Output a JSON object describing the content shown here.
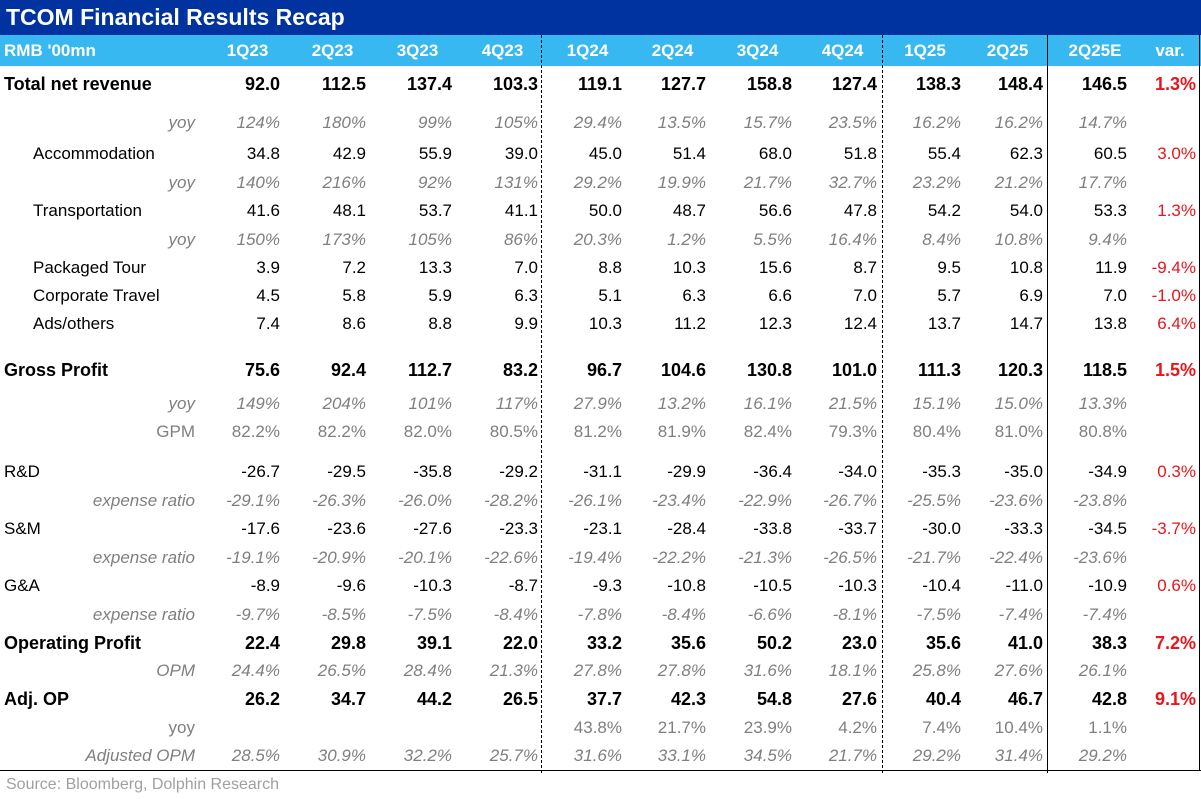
{
  "title": "TCOM Financial Results Recap",
  "header": {
    "unit": "RMB '00mn",
    "columns": [
      "1Q23",
      "2Q23",
      "3Q23",
      "4Q23",
      "1Q24",
      "2Q24",
      "3Q24",
      "4Q24",
      "1Q25",
      "2Q25",
      "2Q25E"
    ],
    "var": "var."
  },
  "rows": [
    {
      "label": "Total net revenue",
      "style": "bold",
      "values": [
        "92.0",
        "112.5",
        "137.4",
        "103.3",
        "119.1",
        "127.7",
        "158.8",
        "127.4",
        "138.3",
        "148.4",
        "146.5"
      ],
      "var": "1.3%"
    },
    {
      "label": "yoy",
      "style": "italic-right",
      "values": [
        "124%",
        "180%",
        "99%",
        "105%",
        "29.4%",
        "13.5%",
        "15.7%",
        "23.5%",
        "16.2%",
        "16.2%",
        "14.7%"
      ],
      "var": ""
    },
    {
      "label": "Accommodation",
      "style": "indent",
      "values": [
        "34.8",
        "42.9",
        "55.9",
        "39.0",
        "45.0",
        "51.4",
        "68.0",
        "51.8",
        "55.4",
        "62.3",
        "60.5"
      ],
      "var": "3.0%"
    },
    {
      "label": "yoy",
      "style": "italic-right",
      "values": [
        "140%",
        "216%",
        "92%",
        "131%",
        "29.2%",
        "19.9%",
        "21.7%",
        "32.7%",
        "23.2%",
        "21.2%",
        "17.7%"
      ],
      "var": ""
    },
    {
      "label": "Transportation",
      "style": "indent",
      "values": [
        "41.6",
        "48.1",
        "53.7",
        "41.1",
        "50.0",
        "48.7",
        "56.6",
        "47.8",
        "54.2",
        "54.0",
        "53.3"
      ],
      "var": "1.3%"
    },
    {
      "label": "yoy",
      "style": "italic-right",
      "values": [
        "150%",
        "173%",
        "105%",
        "86%",
        "20.3%",
        "1.2%",
        "5.5%",
        "16.4%",
        "8.4%",
        "10.8%",
        "9.4%"
      ],
      "var": ""
    },
    {
      "label": "Packaged Tour",
      "style": "indent",
      "values": [
        "3.9",
        "7.2",
        "13.3",
        "7.0",
        "8.8",
        "10.3",
        "15.6",
        "8.7",
        "9.5",
        "10.8",
        "11.9"
      ],
      "var": "-9.4%"
    },
    {
      "label": "Corporate Travel",
      "style": "indent",
      "values": [
        "4.5",
        "5.8",
        "5.9",
        "6.3",
        "5.1",
        "6.3",
        "6.6",
        "7.0",
        "5.7",
        "6.9",
        "7.0"
      ],
      "var": "-1.0%"
    },
    {
      "label": "Ads/others",
      "style": "indent",
      "values": [
        "7.4",
        "8.6",
        "8.8",
        "9.9",
        "10.3",
        "11.2",
        "12.3",
        "12.4",
        "13.7",
        "14.7",
        "13.8"
      ],
      "var": "6.4%"
    },
    {
      "label": "Gross Profit",
      "style": "bold",
      "values": [
        "75.6",
        "92.4",
        "112.7",
        "83.2",
        "96.7",
        "104.6",
        "130.8",
        "101.0",
        "111.3",
        "120.3",
        "118.5"
      ],
      "var": "1.5%"
    },
    {
      "label": "yoy",
      "style": "italic-right",
      "values": [
        "149%",
        "204%",
        "101%",
        "117%",
        "27.9%",
        "13.2%",
        "16.1%",
        "21.5%",
        "15.1%",
        "15.0%",
        "13.3%"
      ],
      "var": ""
    },
    {
      "label": "GPM",
      "style": "grey-right",
      "values": [
        "82.2%",
        "82.2%",
        "82.0%",
        "80.5%",
        "81.2%",
        "81.9%",
        "82.4%",
        "79.3%",
        "80.4%",
        "81.0%",
        "80.8%"
      ],
      "var": ""
    },
    {
      "label": "R&D",
      "style": "plain",
      "values": [
        "-26.7",
        "-29.5",
        "-35.8",
        "-29.2",
        "-31.1",
        "-29.9",
        "-36.4",
        "-34.0",
        "-35.3",
        "-35.0",
        "-34.9"
      ],
      "var": "0.3%"
    },
    {
      "label": "expense ratio",
      "style": "italic-right",
      "values": [
        "-29.1%",
        "-26.3%",
        "-26.0%",
        "-28.2%",
        "-26.1%",
        "-23.4%",
        "-22.9%",
        "-26.7%",
        "-25.5%",
        "-23.6%",
        "-23.8%"
      ],
      "var": ""
    },
    {
      "label": "S&M",
      "style": "plain",
      "values": [
        "-17.6",
        "-23.6",
        "-27.6",
        "-23.3",
        "-23.1",
        "-28.4",
        "-33.8",
        "-33.7",
        "-30.0",
        "-33.3",
        "-34.5"
      ],
      "var": "-3.7%"
    },
    {
      "label": "expense ratio",
      "style": "italic-right",
      "values": [
        "-19.1%",
        "-20.9%",
        "-20.1%",
        "-22.6%",
        "-19.4%",
        "-22.2%",
        "-21.3%",
        "-26.5%",
        "-21.7%",
        "-22.4%",
        "-23.6%"
      ],
      "var": ""
    },
    {
      "label": "G&A",
      "style": "plain",
      "values": [
        "-8.9",
        "-9.6",
        "-10.3",
        "-8.7",
        "-9.3",
        "-10.8",
        "-10.5",
        "-10.3",
        "-10.4",
        "-11.0",
        "-10.9"
      ],
      "var": "0.6%"
    },
    {
      "label": "expense ratio",
      "style": "italic-right",
      "values": [
        "-9.7%",
        "-8.5%",
        "-7.5%",
        "-8.4%",
        "-7.8%",
        "-8.4%",
        "-6.6%",
        "-8.1%",
        "-7.5%",
        "-7.4%",
        "-7.4%"
      ],
      "var": ""
    },
    {
      "label": "Operating Profit",
      "style": "bold",
      "values": [
        "22.4",
        "29.8",
        "39.1",
        "22.0",
        "33.2",
        "35.6",
        "50.2",
        "23.0",
        "35.6",
        "41.0",
        "38.3"
      ],
      "var": "7.2%"
    },
    {
      "label": "OPM",
      "style": "italic-right",
      "values": [
        "24.4%",
        "26.5%",
        "28.4%",
        "21.3%",
        "27.8%",
        "27.8%",
        "31.6%",
        "18.1%",
        "25.8%",
        "27.6%",
        "26.1%"
      ],
      "var": ""
    },
    {
      "label": "Adj. OP",
      "style": "bold",
      "values": [
        "26.2",
        "34.7",
        "44.2",
        "26.5",
        "37.7",
        "42.3",
        "54.8",
        "27.6",
        "40.4",
        "46.7",
        "42.8"
      ],
      "var": "9.1%"
    },
    {
      "label": "yoy",
      "style": "grey-right",
      "values": [
        "",
        "",
        "",
        "",
        "43.8%",
        "21.7%",
        "23.9%",
        "4.2%",
        "7.4%",
        "10.4%",
        "1.1%"
      ],
      "var": ""
    },
    {
      "label": "Adjusted OPM",
      "style": "italic-right",
      "values": [
        "28.5%",
        "30.9%",
        "32.2%",
        "25.7%",
        "31.6%",
        "33.1%",
        "34.5%",
        "21.7%",
        "29.2%",
        "31.4%",
        "29.2%"
      ],
      "var": ""
    }
  ],
  "source": "Source:  Bloomberg, Dolphin Research",
  "colors": {
    "title_bg": "#0033a0",
    "header_bg": "#38b8f0",
    "var_text": "#e8161c",
    "muted_text": "#7f7f7f"
  }
}
